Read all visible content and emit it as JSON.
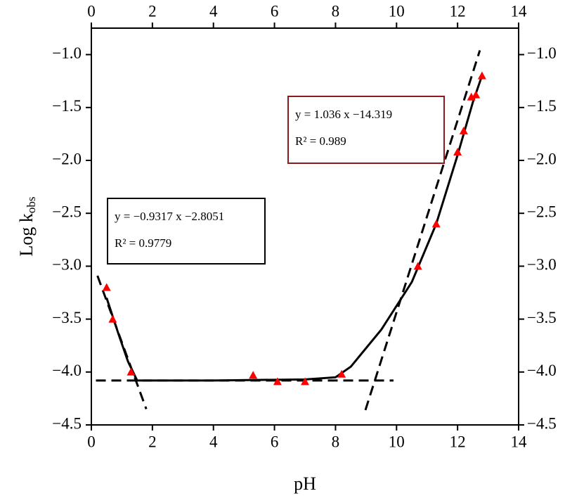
{
  "chart_data": {
    "type": "scatter",
    "xlabel": "pH",
    "ylabel": {
      "main": "Log k",
      "sub": "obs"
    },
    "xlim": [
      0,
      14
    ],
    "ylim": [
      -4.5,
      -0.75
    ],
    "xticks": [
      0,
      2,
      4,
      6,
      8,
      10,
      12,
      14
    ],
    "yticks": [
      {
        "value": -4.5,
        "label": "−4.5"
      },
      {
        "value": -4.0,
        "label": "−4.0"
      },
      {
        "value": -3.5,
        "label": "−3.5"
      },
      {
        "value": -3.0,
        "label": "−3.0"
      },
      {
        "value": -2.5,
        "label": "−2.5"
      },
      {
        "value": -2.0,
        "label": "−2.0"
      },
      {
        "value": -1.5,
        "label": "−1.5"
      },
      {
        "value": -1.0,
        "label": "−1.0"
      }
    ],
    "series": [
      {
        "style": "markers",
        "color": "#ff0000",
        "x": [
          0.5,
          0.7,
          1.3,
          5.3,
          6.1,
          7.0,
          8.2,
          10.7,
          11.3,
          12.0,
          12.2,
          12.45,
          12.6,
          12.8
        ],
        "values": [
          -3.2,
          -3.5,
          -4.0,
          -4.03,
          -4.09,
          -4.09,
          -4.02,
          -3.0,
          -2.6,
          -1.92,
          -1.72,
          -1.4,
          -1.38,
          -1.2
        ]
      },
      {
        "style": "solid",
        "color": "#000000",
        "x": [
          0.5,
          0.9,
          1.2,
          1.5,
          4,
          7,
          8,
          8.5,
          9.5,
          10.5,
          11.3,
          12,
          12.5,
          12.8
        ],
        "values": [
          -3.3,
          -3.65,
          -3.9,
          -4.08,
          -4.08,
          -4.07,
          -4.05,
          -3.95,
          -3.6,
          -3.15,
          -2.6,
          -1.95,
          -1.45,
          -1.2
        ]
      },
      {
        "style": "dashed",
        "color": "#000000",
        "x": [
          0.2,
          1.8
        ],
        "values": [
          -3.09,
          -4.35
        ]
      },
      {
        "style": "dashed",
        "color": "#000000",
        "x": [
          0.15,
          9.9
        ],
        "values": [
          -4.08,
          -4.08
        ]
      },
      {
        "style": "dashed",
        "color": "#000000",
        "x": [
          8.98,
          12.73
        ],
        "values": [
          -4.36,
          -0.96
        ]
      }
    ],
    "annotations": [
      {
        "lines": [
          "y = −0.9317 x −2.8051",
          "R² = 0.9779"
        ],
        "color": "#000000"
      },
      {
        "lines": [
          "y = 1.036 x −14.319",
          "R² = 0.989"
        ],
        "color": "#8b1a1a"
      }
    ]
  }
}
